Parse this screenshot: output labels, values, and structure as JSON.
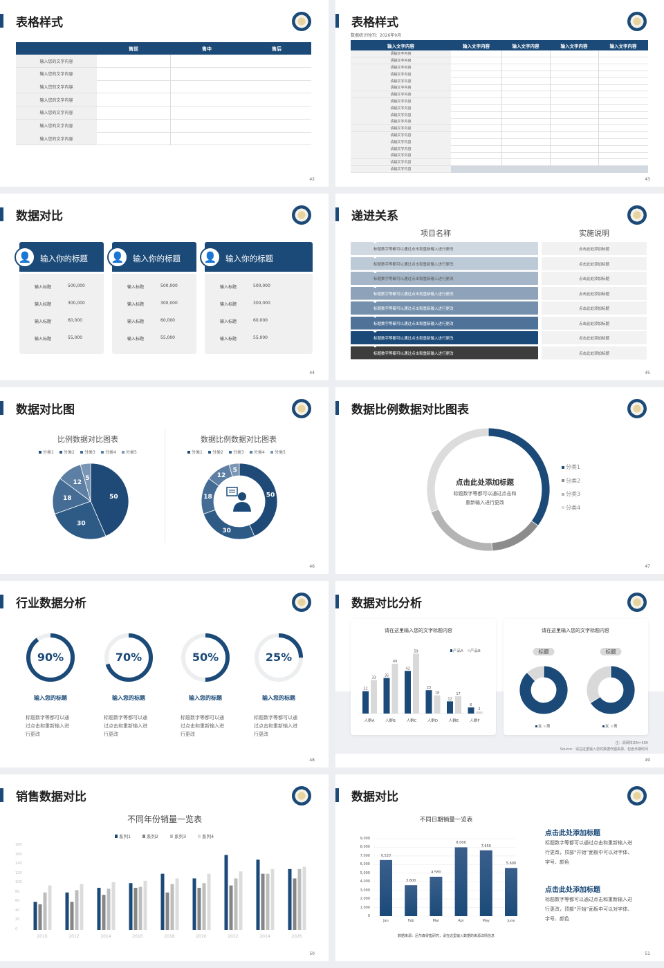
{
  "theme": {
    "primary": "#1b4a78",
    "dark": "#3d3d3d",
    "light_gray": "#f0f0f0",
    "mid_gray": "#8c8c8c"
  },
  "slides": [
    {
      "title": "表格样式",
      "page": "42",
      "table": {
        "headers": [
          "",
          "售前",
          "售中",
          "售后"
        ],
        "rows": [
          "输入您的文字内容",
          "输入您的文字内容",
          "输入您的文字内容",
          "输入您的文字内容",
          "输入您的文字内容",
          "输入您的文字内容",
          "输入您的文字内容"
        ]
      }
    },
    {
      "title": "表格样式",
      "page": "43",
      "subtitle": "数据统计时间：2026年9月",
      "table": {
        "headers": [
          "输入文字内容",
          "输入文字内容",
          "输入文字内容",
          "输入文字内容",
          "输入文字内容"
        ],
        "rows": [
          "请输文字内容",
          "请输文字内容",
          "请输文字内容",
          "请输文字内容",
          "请输文字内容",
          "请输文字内容",
          "请输文字内容",
          "请输文字内容",
          "请输文字内容",
          "请输文字内容",
          "请输文字内容",
          "请输文字内容",
          "请输文字内容",
          "请输文字内容",
          "请输文字内容",
          "请输文字内容",
          "请输文字内容",
          "请输文字内容"
        ]
      }
    },
    {
      "title": "数据对比",
      "page": "44",
      "cards": [
        {
          "heading": "输入你的标题",
          "icon": "tablet-user-icon",
          "rows": [
            {
              "label": "输入标题",
              "value": "500,000"
            },
            {
              "label": "输入标题",
              "value": "300,000"
            },
            {
              "label": "输入标题",
              "value": "60,000"
            },
            {
              "label": "输入标题",
              "value": "55,000"
            }
          ]
        },
        {
          "heading": "输入你的标题",
          "icon": "user-add-icon",
          "rows": [
            {
              "label": "输入标题",
              "value": "500,000"
            },
            {
              "label": "输入标题",
              "value": "300,000"
            },
            {
              "label": "输入标题",
              "value": "60,000"
            },
            {
              "label": "输入标题",
              "value": "55,000"
            }
          ]
        },
        {
          "heading": "输入你的标题",
          "icon": "group-icon",
          "rows": [
            {
              "label": "输入标题",
              "value": "500,000"
            },
            {
              "label": "输入标题",
              "value": "300,000"
            },
            {
              "label": "输入标题",
              "value": "60,000"
            },
            {
              "label": "输入标题",
              "value": "55,000"
            }
          ]
        }
      ]
    },
    {
      "title": "递进关系",
      "page": "45",
      "col_left": "项目名称",
      "col_right": "实施说明",
      "rows": [
        {
          "text": "标题数字等都可以通过点击和重新输入进行更改",
          "note": "点击此处添加标题",
          "color": "#d0d9e2"
        },
        {
          "text": "标题数字等都可以通过点击和重新输入进行更改",
          "note": "点击此处添加标题",
          "color": "#bcc9d6"
        },
        {
          "text": "标题数字等都可以通过点击和重新输入进行更改",
          "note": "点击此处添加标题",
          "color": "#a5b6c8"
        },
        {
          "text": "标题数字等都可以通过点击和重新输入进行更改",
          "note": "点击此处添加标题",
          "color": "#8ea3ba"
        },
        {
          "text": "标题数字等都可以通过点击和重新输入进行更改",
          "note": "点击此处添加标题",
          "color": "#7490ac"
        },
        {
          "text": "标题数字等都可以通过点击和重新输入进行更改",
          "note": "点击此处添加标题",
          "color": "#4f7299"
        },
        {
          "text": "标题数字等都可以通过点击和重新输入进行更改",
          "note": "点击此处添加标题",
          "color": "#1b4a78"
        },
        {
          "text": "标题数字等都可以通过点击和重新输入进行更改",
          "note": "点击此处添加标题",
          "color": "#3d3d3d"
        }
      ]
    },
    {
      "title": "数据对比图",
      "page": "46"
    },
    {
      "title": "数据比例数据对比图表",
      "page": "47",
      "center_title": "点击此处添加标题",
      "center_lines": [
        "标题数字等都可以通过点击和",
        "重新输入进行更改"
      ]
    },
    {
      "title": "行业数据分析",
      "page": "48",
      "items": [
        {
          "percent": 90,
          "label": "90%",
          "heading": "输入您的标题",
          "desc": [
            "标题数字等都可以通",
            "过点击和重新输入进",
            "行更改"
          ]
        },
        {
          "percent": 70,
          "label": "70%",
          "heading": "输入您的标题",
          "desc": [
            "标题数字等都可以通",
            "过点击和重新输入进",
            "行更改"
          ]
        },
        {
          "percent": 50,
          "label": "50%",
          "heading": "输入您的标题",
          "desc": [
            "标题数字等都可以通",
            "过点击和重新输入进",
            "行更改"
          ]
        },
        {
          "percent": 25,
          "label": "25%",
          "heading": "输入您的标题",
          "desc": [
            "标题数字等都可以通",
            "过点击和重新输入进",
            "行更改"
          ]
        }
      ]
    },
    {
      "title": "数据对比分析",
      "page": "49",
      "note": "注：调研样本N=500",
      "source": "Source：请在这里输入您的数据作图来源，包含日期时间"
    },
    {
      "title": "销售数据对比",
      "page": "50"
    },
    {
      "title": "数据对比",
      "page": "51",
      "source": "数据来源：尼尔森零售研究，请在这里输入数据的来源详情信息",
      "blocks": [
        {
          "heading": "点击此处添加标题",
          "lines": [
            "标题数字等都可以通过点击和重新输入进",
            "行更改，顶部“开始”面板中可以对字体、",
            "字号、颜色"
          ]
        },
        {
          "heading": "点击此处添加标题",
          "lines": [
            "标题数字等都可以通过点击和重新输入进",
            "行更改，顶部“开始”面板中可以对字体、",
            "字号、颜色"
          ]
        }
      ]
    }
  ],
  "chart_data": [
    {
      "type": "pie",
      "slide": "46",
      "title": "比例数据对比图表",
      "categories": [
        "分类1",
        "分类2",
        "分类3",
        "分类4",
        "分类5"
      ],
      "values": [
        50,
        30,
        18,
        12,
        5
      ],
      "colors": [
        "#1f4a77",
        "#2e5b86",
        "#456c94",
        "#5d7fa3",
        "#7a96b4"
      ],
      "legend": "top"
    },
    {
      "type": "pie",
      "variant": "donut",
      "slide": "46",
      "title": "数据比例数据对比图表",
      "categories": [
        "分类1",
        "分类2",
        "分类3",
        "分类4",
        "分类5"
      ],
      "values": [
        50,
        30,
        18,
        12,
        5
      ],
      "colors": [
        "#1f4a77",
        "#2e5b86",
        "#456c94",
        "#5d7fa3",
        "#7a96b4"
      ],
      "legend": "top",
      "center_icon": "presenter-icon"
    },
    {
      "type": "pie",
      "variant": "donut",
      "slide": "47",
      "categories": [
        "分类1",
        "分类2",
        "分类3",
        "分类4"
      ],
      "values": [
        35,
        14,
        20,
        31
      ],
      "colors": [
        "#1b4a78",
        "#8c8c8c",
        "#b4b4b4",
        "#dcdcdc"
      ],
      "legend": "right"
    },
    {
      "type": "bar",
      "slide": "49",
      "title": "请在这里输入您的文字标题内容",
      "categories": [
        "人群A",
        "人群B",
        "人群C",
        "人群D",
        "人群E",
        "人群F"
      ],
      "series": [
        {
          "name": "产品A",
          "values": [
            22,
            35,
            42,
            23,
            12,
            6
          ],
          "color": "#1b4a78"
        },
        {
          "name": "产品B",
          "values": [
            33,
            49,
            59,
            18,
            17,
            2
          ],
          "color": "#d9d9d9"
        }
      ],
      "unit": "%",
      "legend": "top-right"
    },
    {
      "type": "pie",
      "variant": "donut",
      "slide": "49",
      "title": "请在这里输入您的文字标题内容",
      "panels": [
        {
          "label": "标题",
          "categories": [
            "女",
            "男"
          ],
          "values": [
            88,
            12
          ]
        },
        {
          "label": "标题",
          "categories": [
            "女",
            "男"
          ],
          "values": [
            66,
            34
          ]
        }
      ],
      "colors": [
        "#1b4a78",
        "#d9d9d9"
      ],
      "unit": "%"
    },
    {
      "type": "bar",
      "slide": "50",
      "title": "不同年份销量一览表",
      "categories": [
        "2010",
        "2012",
        "2014",
        "2016",
        "2018",
        "2020",
        "2022",
        "2024",
        "2026"
      ],
      "series": [
        {
          "name": "系列1",
          "values": [
            60,
            80,
            90,
            100,
            120,
            110,
            160,
            150,
            130
          ],
          "color": "#1b4a78"
        },
        {
          "name": "系列2",
          "values": [
            55,
            60,
            75,
            90,
            80,
            90,
            95,
            120,
            110
          ],
          "color": "#858585"
        },
        {
          "name": "系列3",
          "values": [
            80,
            85,
            88,
            92,
            98,
            100,
            110,
            120,
            130
          ],
          "color": "#bdbdbd"
        },
        {
          "name": "系列4",
          "values": [
            95,
            98,
            102,
            105,
            110,
            120,
            125,
            130,
            135
          ],
          "color": "#dcdcdc"
        }
      ],
      "ylim": [
        0,
        180
      ],
      "yticks": [
        "0",
        "20",
        "40",
        "60",
        "80",
        "100",
        "120",
        "140",
        "160",
        "180"
      ],
      "legend": "top"
    },
    {
      "type": "bar",
      "slide": "51",
      "title": "不同日期销量一览表",
      "categories": [
        "Jan",
        "Feb",
        "Mar",
        "Apr",
        "May",
        "June"
      ],
      "values": [
        6520,
        3600,
        4580,
        8000,
        7650,
        5600
      ],
      "labels": [
        "6,520",
        "3,600",
        "4,580",
        "8,000",
        "7,650",
        "5,600"
      ],
      "ylim": [
        0,
        9000
      ],
      "yticks": [
        "0",
        "1,000",
        "2,000",
        "3,000",
        "4,000",
        "5,000",
        "6,000",
        "7,000",
        "8,000",
        "9,000"
      ],
      "grid": true
    }
  ]
}
